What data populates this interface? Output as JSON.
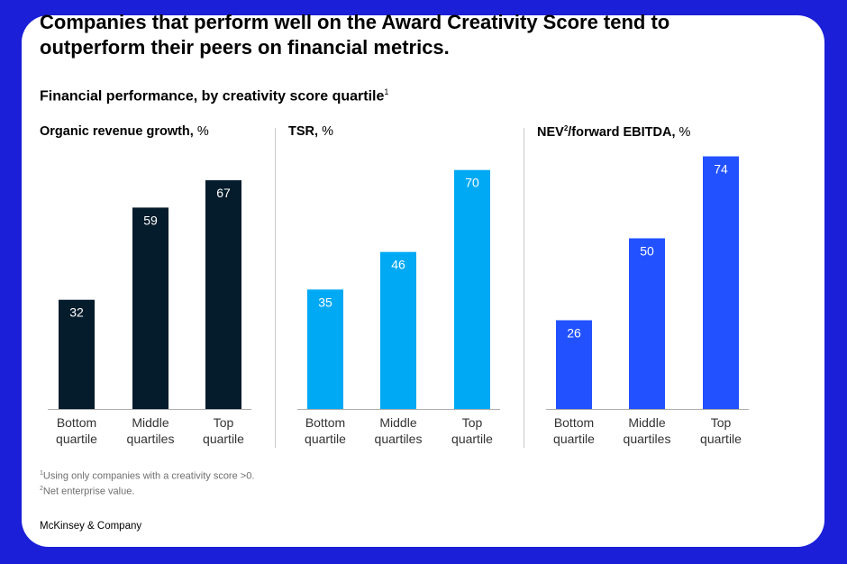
{
  "title": "Companies that perform well on the Award Creativity Score tend to outperform their peers on financial metrics.",
  "subtitle": "Financial performance, by creativity score quartile",
  "subtitle_note": "1",
  "footnotes": [
    {
      "mark": "1",
      "text": "Using only companies with a creativity score >0."
    },
    {
      "mark": "2",
      "text": "Net enterprise value."
    }
  ],
  "source": "McKinsey & Company",
  "chart_data": [
    {
      "type": "bar",
      "title": "Organic revenue growth,",
      "title_sup": "",
      "title_suffix": "",
      "unit": "%",
      "color": "#051c2c",
      "categories": [
        "Bottom quartile",
        "Middle quartiles",
        "Top quartile"
      ],
      "category_lines": [
        [
          "Bottom",
          "quartile"
        ],
        [
          "Middle",
          "quartiles"
        ],
        [
          "Top",
          "quartile"
        ]
      ],
      "values": [
        32,
        59,
        67
      ]
    },
    {
      "type": "bar",
      "title": "TSR,",
      "title_sup": "",
      "title_suffix": "",
      "unit": "%",
      "color": "#00a9f4",
      "categories": [
        "Bottom quartile",
        "Middle quartiles",
        "Top quartile"
      ],
      "category_lines": [
        [
          "Bottom",
          "quartile"
        ],
        [
          "Middle",
          "quartiles"
        ],
        [
          "Top",
          "quartile"
        ]
      ],
      "values": [
        35,
        46,
        70
      ]
    },
    {
      "type": "bar",
      "title": "NEV",
      "title_sup": "2",
      "title_suffix": "/forward EBITDA,",
      "unit": "%",
      "color": "#2251ff",
      "categories": [
        "Bottom quartile",
        "Middle quartiles",
        "Top quartile"
      ],
      "category_lines": [
        [
          "Bottom",
          "quartile"
        ],
        [
          "Middle",
          "quartiles"
        ],
        [
          "Top",
          "quartile"
        ]
      ],
      "values": [
        26,
        50,
        74
      ]
    }
  ]
}
